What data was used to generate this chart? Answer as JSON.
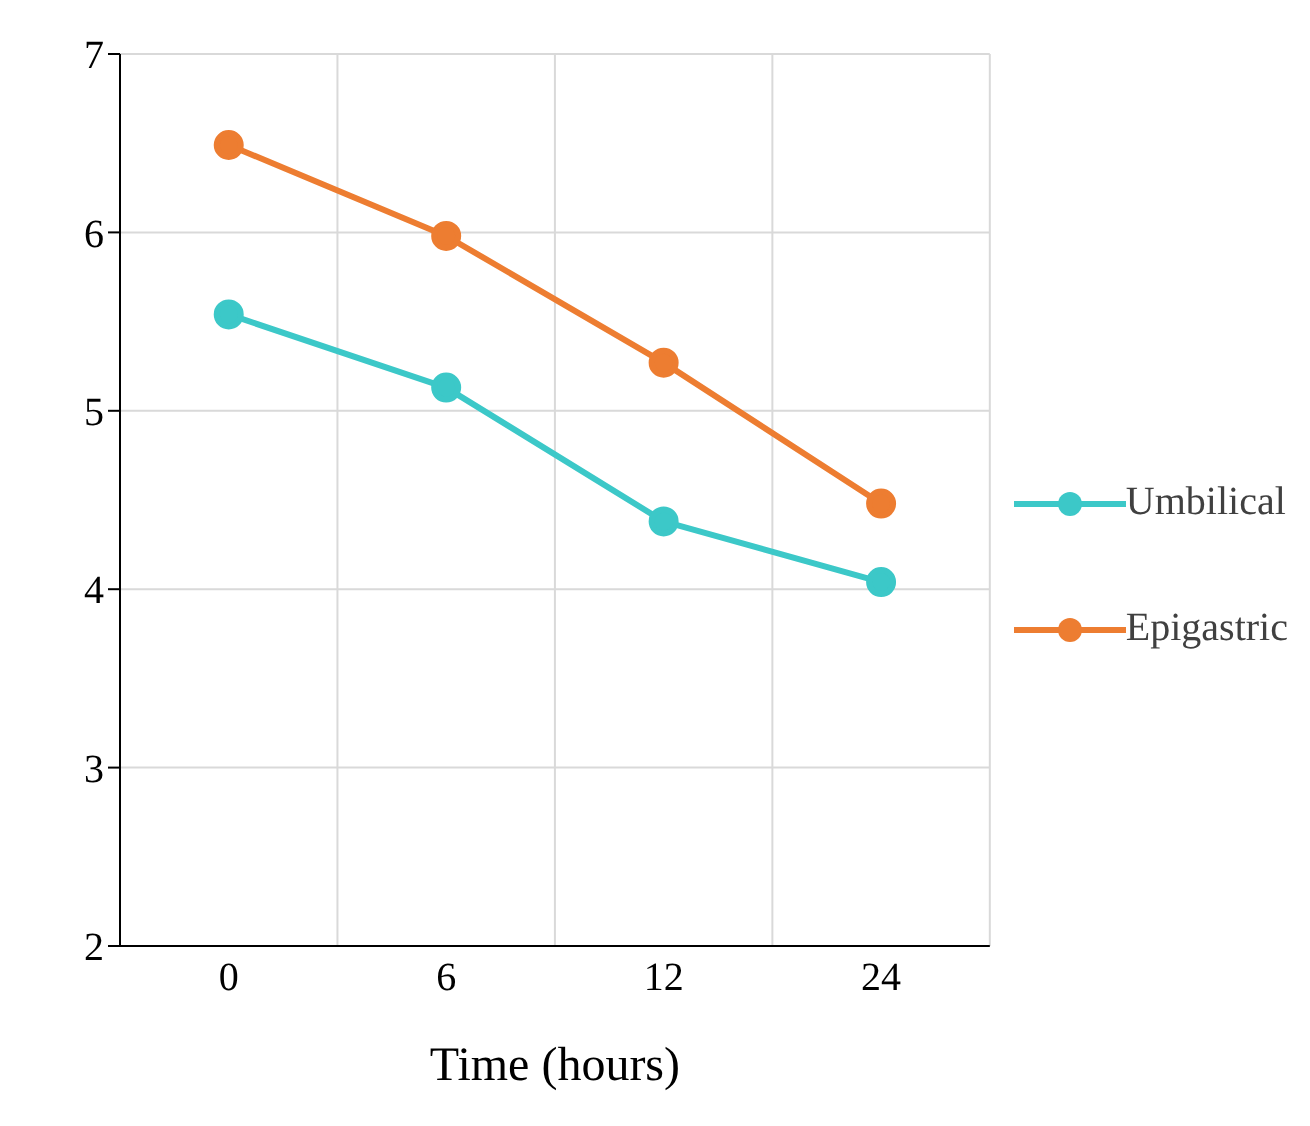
{
  "chart_data": {
    "type": "line",
    "xlabel": "Time (hours)",
    "categories": [
      "0",
      "6",
      "12",
      "24"
    ],
    "series": [
      {
        "name": "Umbilical",
        "color": "#3cc8c8",
        "values": [
          5.54,
          5.13,
          4.38,
          4.04
        ]
      },
      {
        "name": "Epigastric",
        "color": "#ed7d31",
        "values": [
          6.49,
          5.98,
          5.27,
          4.48
        ]
      }
    ],
    "ylim": [
      2,
      7
    ],
    "yticks": [
      2,
      3,
      4,
      5,
      6,
      7
    ],
    "grid": true,
    "legend": "right",
    "marker": "circle",
    "line_style": "solid"
  }
}
